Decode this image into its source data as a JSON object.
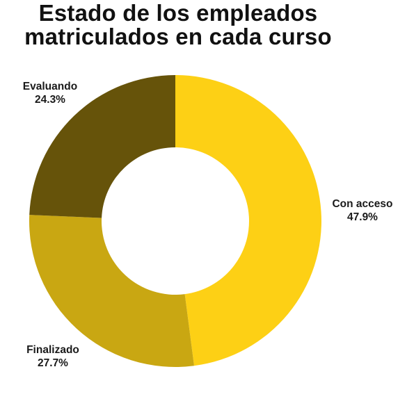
{
  "chart_data": {
    "type": "pie",
    "style": "donut",
    "title_lines": [
      "Estado de los empleados",
      "matriculados en cada curso"
    ],
    "slices": [
      {
        "label": "Con acceso",
        "value": 47.9,
        "value_label": "47.9%",
        "color": "#FDD015"
      },
      {
        "label": "Finalizado",
        "value": 27.7,
        "value_label": "27.7%",
        "color": "#C9A712"
      },
      {
        "label": "Evaluando",
        "value": 24.3,
        "value_label": "24.3%",
        "color": "#66530A"
      }
    ],
    "legend": "none",
    "start": "top",
    "direction": "clockwise"
  }
}
